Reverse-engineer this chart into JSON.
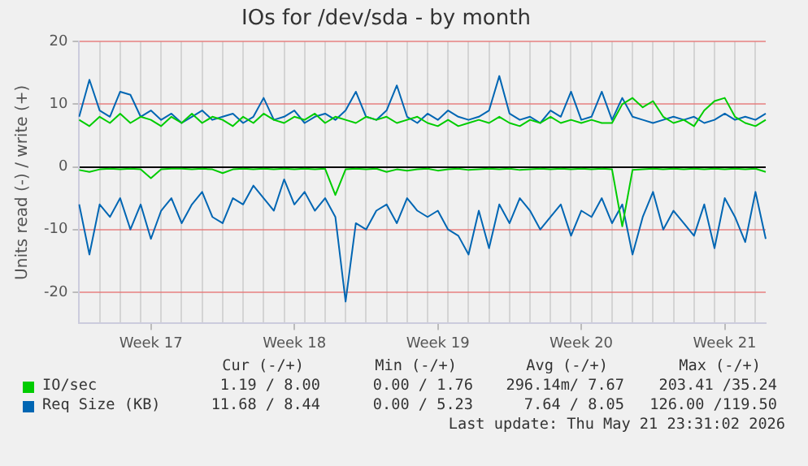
{
  "chart_data": {
    "type": "line",
    "title": "IOs for /dev/sda - by month",
    "ylabel": "Units read (-) / write (+)",
    "categories": [
      null,
      null,
      null,
      null,
      null,
      null,
      null,
      "Week 17",
      null,
      null,
      null,
      null,
      null,
      null,
      null,
      null,
      null,
      null,
      null,
      null,
      null,
      "Week 18",
      null,
      null,
      null,
      null,
      null,
      null,
      null,
      null,
      null,
      null,
      null,
      null,
      null,
      "Week 19",
      null,
      null,
      null,
      null,
      null,
      null,
      null,
      null,
      null,
      null,
      null,
      null,
      null,
      "Week 20",
      null,
      null,
      null,
      null,
      null,
      null,
      null,
      null,
      null,
      null,
      null,
      null,
      null,
      "Week 21",
      null,
      null,
      null,
      null
    ],
    "ylim": [
      -25,
      20
    ],
    "yticks": [
      -20,
      -10,
      0,
      10,
      20
    ],
    "series": [
      {
        "color": "#00cc00",
        "values": [
          -0.5,
          -0.8,
          -0.4,
          -0.3,
          -0.4,
          -0.3,
          -0.4,
          -1.8,
          -0.4,
          -0.3,
          -0.3,
          -0.4,
          -0.3,
          -0.4,
          -1,
          -0.4,
          -0.3,
          -0.4,
          -0.3,
          -0.4,
          -0.3,
          -0.4,
          -0.3,
          -0.4,
          -0.3,
          -4.5,
          -0.4,
          -0.3,
          -0.4,
          -0.3,
          -0.8,
          -0.4,
          -0.6,
          -0.4,
          -0.3,
          -0.6,
          -0.4,
          -0.3,
          -0.5,
          -0.4,
          -0.3,
          -0.4,
          -0.3,
          -0.5,
          -0.4,
          -0.3,
          -0.4,
          -0.3,
          -0.4,
          -0.3,
          -0.4,
          -0.3,
          -0.4,
          -9.5,
          -0.5,
          -0.4,
          -0.3,
          -0.4,
          -0.3,
          -0.4,
          -0.3,
          -0.4,
          -0.3,
          -0.4,
          -0.3,
          -0.4,
          -0.3,
          -0.8
        ]
      },
      {
        "name": "IO/sec",
        "color": "#00cc00",
        "values": [
          7.5,
          6.5,
          8,
          7,
          8.5,
          7,
          8,
          7.5,
          6.5,
          8,
          7,
          8.5,
          7,
          8,
          7.5,
          6.5,
          8,
          7,
          8.5,
          7.5,
          7,
          8,
          7.5,
          8.5,
          7,
          8,
          7.5,
          7,
          8,
          7.5,
          8,
          7,
          7.5,
          8,
          7,
          6.5,
          7.5,
          6.5,
          7,
          7.5,
          7,
          8,
          7,
          6.5,
          7.5,
          7,
          8,
          7,
          7.5,
          7,
          7.5,
          7,
          7,
          10,
          11,
          9.5,
          10.5,
          8,
          7,
          7.5,
          6.5,
          9,
          10.5,
          11,
          8,
          7,
          6.5,
          7.5
        ]
      },
      {
        "color": "#0066b3",
        "values": [
          -6,
          -14,
          -6,
          -8,
          -5,
          -10,
          -6,
          -11.5,
          -7,
          -5,
          -9,
          -6,
          -4,
          -8,
          -9,
          -5,
          -6,
          -3,
          -5,
          -7,
          -2,
          -6,
          -4,
          -7,
          -5,
          -8,
          -21.5,
          -9,
          -10,
          -7,
          -6,
          -9,
          -5,
          -7,
          -8,
          -7,
          -10,
          -11,
          -14,
          -7,
          -13,
          -6,
          -9,
          -5,
          -7,
          -10,
          -8,
          -6,
          -11,
          -7,
          -8,
          -5,
          -9,
          -6,
          -14,
          -8,
          -4,
          -10,
          -7,
          -9,
          -11,
          -6,
          -13,
          -5,
          -8,
          -12,
          -4,
          -11.5
        ]
      },
      {
        "name": "Req Size (KB)",
        "color": "#0066b3",
        "values": [
          8,
          13.9,
          9,
          8,
          12,
          11.5,
          8,
          9,
          7.5,
          8.5,
          7,
          8,
          9,
          7.5,
          8,
          8.5,
          7,
          8,
          11,
          7.5,
          8,
          9,
          7,
          8,
          8.5,
          7.5,
          9,
          12,
          8,
          7.5,
          9,
          13,
          8,
          7,
          8.5,
          7.5,
          9,
          8,
          7.5,
          8,
          9,
          14.5,
          8.5,
          7.5,
          8,
          7,
          9,
          8,
          12,
          7.5,
          8,
          12,
          7.5,
          11,
          8,
          7.5,
          7,
          7.5,
          8,
          7.5,
          8,
          7,
          7.5,
          8.5,
          7.5,
          8,
          7.5,
          8.5
        ]
      }
    ],
    "grid": true,
    "legend": "bottom",
    "marker": "none",
    "line_style": "solid",
    "annotations": [
      "Cur (-/+)",
      "Min (-/+)",
      "Avg (-/+)",
      "Max (-/+)",
      "1.19 / 8.00",
      "0.00 / 1.76",
      "296.14m/ 7.67",
      "203.41 /35.24",
      "11.68 / 8.44",
      "0.00 / 5.23",
      "7.64 / 8.05",
      "126.00 /119.50",
      "Last update: Thu May 21 23:31:02 2026"
    ]
  }
}
